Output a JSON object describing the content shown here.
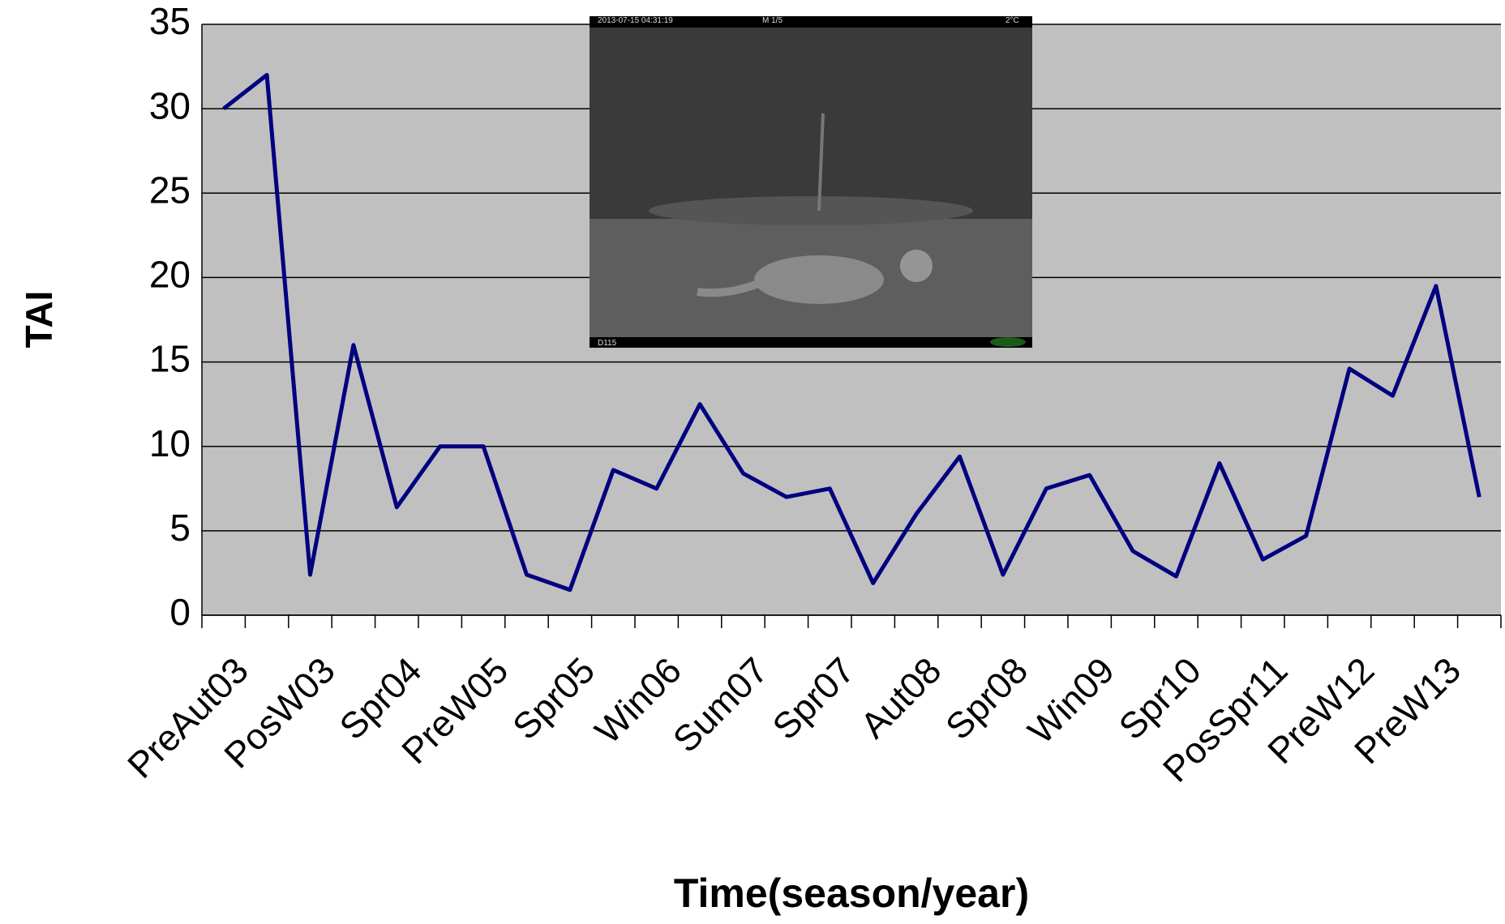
{
  "chart_data": {
    "type": "line",
    "x_label": "Time(season/year)",
    "y_label": "TAI",
    "categories": [
      "PreAut03",
      null,
      "PosW03",
      null,
      "Spr04",
      null,
      "PreW05",
      null,
      "Spr05",
      null,
      "Win06",
      null,
      "Sum07",
      null,
      "Spr07",
      null,
      "Aut08",
      null,
      "Spr08",
      null,
      "Win09",
      null,
      "Spr10",
      null,
      "PosSpr11",
      null,
      "PreW12",
      null,
      "PreW13",
      null
    ],
    "series": [
      {
        "name": "TAI",
        "color": "#000080",
        "values": [
          30,
          32,
          2.4,
          16,
          6.4,
          10,
          10,
          2.4,
          1.5,
          8.6,
          7.5,
          12.5,
          8.4,
          7,
          7.5,
          1.9,
          6,
          9.4,
          2.4,
          7.5,
          8.3,
          3.8,
          2.3,
          9,
          3.3,
          4.7,
          14.6,
          13,
          19.5,
          7
        ]
      }
    ],
    "ylim": [
      0,
      35
    ],
    "yticks": [
      0,
      5,
      10,
      15,
      20,
      25,
      30,
      35
    ],
    "grid": true,
    "plot_background": "#c0c0c0",
    "inset_photo_texts": [
      "2013-07-15 04:31:19",
      "M 1/5",
      "2°C",
      "D115"
    ]
  }
}
